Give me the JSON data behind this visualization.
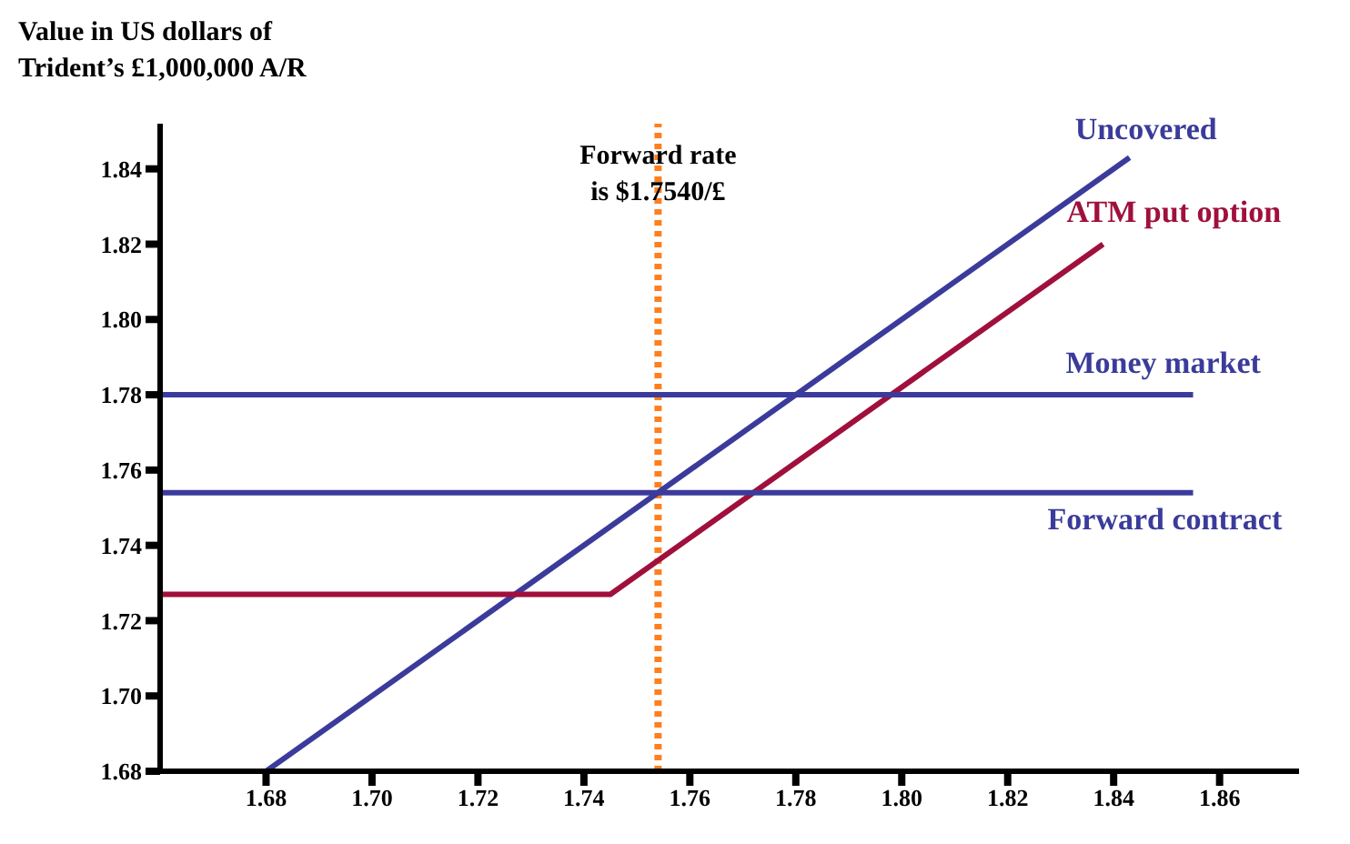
{
  "chart_data": {
    "type": "line",
    "title": "Value in US dollars of\nTrident’s £1,000,000 A/R",
    "xlim": [
      1.66,
      1.875
    ],
    "xticks": [
      1.68,
      {
        "value": 1.7,
        "label": "1.70"
      },
      1.72,
      1.74,
      1.76,
      1.78,
      {
        "value": 1.8,
        "label": "1.80"
      },
      1.82,
      1.84,
      1.86
    ],
    "ylim": [
      1.68,
      1.852
    ],
    "yticks": [
      1.68,
      {
        "value": 1.7,
        "label": "1.70"
      },
      1.72,
      1.74,
      1.76,
      1.78,
      {
        "value": 1.8,
        "label": "1.80"
      },
      1.82,
      1.84
    ],
    "marker": "none",
    "line_style": "solid",
    "series": [
      {
        "name": "Uncovered",
        "color": "#3b3b9b",
        "x": [
          1.68,
          1.843
        ],
        "values": [
          1.68,
          1.843
        ]
      },
      {
        "name": "ATM put option",
        "color": "#a0103c",
        "x": [
          1.66,
          1.745,
          1.838
        ],
        "values": [
          1.727,
          1.727,
          1.82
        ]
      },
      {
        "name": "Money market",
        "color": "#3b3b9b",
        "x": [
          1.66,
          1.855
        ],
        "values": [
          1.78,
          1.78
        ]
      },
      {
        "name": "Forward contract",
        "color": "#3b3b9b",
        "x": [
          1.66,
          1.855
        ],
        "values": [
          1.754,
          1.754
        ]
      }
    ],
    "ref_lines": [
      {
        "axis": "x",
        "value": 1.754,
        "label": "Forward rate\nis $1.7540/£",
        "color": "#ff7f1e",
        "line_style": "dotted"
      }
    ]
  }
}
